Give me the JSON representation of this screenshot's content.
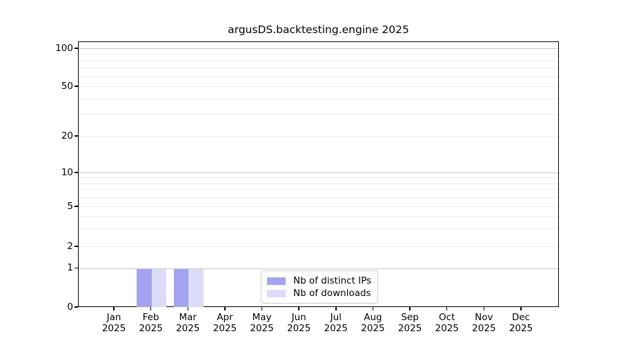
{
  "chart_data": {
    "type": "bar",
    "title": "argusDS.backtesting.engine 2025",
    "categories": [
      "Jan",
      "Feb",
      "Mar",
      "Apr",
      "May",
      "Jun",
      "Jul",
      "Aug",
      "Sep",
      "Oct",
      "Nov",
      "Dec"
    ],
    "x_year": "2025",
    "series": [
      {
        "name": "Nb of distinct IPs",
        "color": "#a3a3f2",
        "values": [
          0,
          1,
          1,
          0,
          0,
          0,
          0,
          0,
          0,
          0,
          0,
          0
        ]
      },
      {
        "name": "Nb of downloads",
        "color": "#dcdcf8",
        "values": [
          0,
          1,
          1,
          0,
          0,
          0,
          0,
          0,
          0,
          0,
          0,
          0
        ]
      }
    ],
    "y_axis": {
      "scale": "symlog",
      "tick_labels": [
        "0",
        "1",
        "2",
        "5",
        "10",
        "20",
        "50",
        "100"
      ],
      "tick_values": [
        0,
        1,
        2,
        5,
        10,
        20,
        50,
        100
      ],
      "major_gridline_values": [
        1,
        10,
        100
      ],
      "minor_gridline_values": [
        2,
        3,
        4,
        5,
        6,
        7,
        8,
        9,
        20,
        30,
        40,
        50,
        60,
        70,
        80,
        90
      ],
      "range_bottom": 0,
      "range_top_label": "100"
    },
    "grid": "horizontal-only",
    "legend_position": "lower-center",
    "colors": {
      "bar_dark": "#a3a3f2",
      "bar_light": "#dcdcf8",
      "grid_major": "#c8c8c8",
      "grid_minor": "#ececec",
      "spine": "#000000",
      "legend_border": "#cccccc"
    }
  }
}
